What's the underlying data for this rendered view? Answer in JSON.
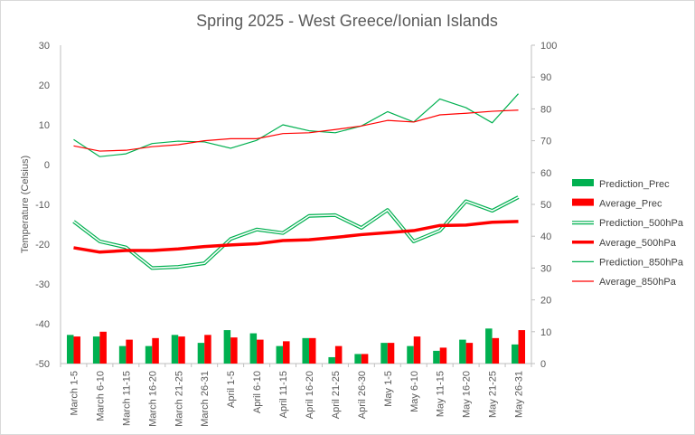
{
  "chart_data": {
    "type": "bar",
    "title": "Spring 2025 - West Greece/Ionian Islands",
    "ylabel": "Temperature  (Celsius)",
    "y2label": "",
    "ylim": [
      -50,
      30
    ],
    "y2lim": [
      0,
      100
    ],
    "yticks": [
      -50,
      -40,
      -30,
      -20,
      -10,
      0,
      10,
      20,
      30
    ],
    "y2ticks": [
      0,
      10,
      20,
      30,
      40,
      50,
      60,
      70,
      80,
      90,
      100
    ],
    "grid": false,
    "legend_position": "right",
    "categories": [
      "March 1-5",
      "March 6-10",
      "March 11-15",
      "March 16-20",
      "March 21-25",
      "March 26-31",
      "April 1-5",
      "April 6-10",
      "April 11-15",
      "April 16-20",
      "April 21-25",
      "April 26-30",
      "May 1-5",
      "May 6-10",
      "May 11-15",
      "May 16-20",
      "May 21-25",
      "May 26-31"
    ],
    "series": [
      {
        "name": "Prediction_Prec",
        "kind": "bar",
        "axis": "right",
        "color": "#00b050",
        "values": [
          9,
          8.5,
          5.5,
          5.5,
          9,
          6.5,
          10.5,
          9.5,
          5.5,
          8,
          2,
          3,
          6.5,
          5.5,
          4,
          7.5,
          11,
          6
        ]
      },
      {
        "name": "Average_Prec",
        "kind": "bar",
        "axis": "right",
        "color": "#ff0000",
        "values": [
          8.5,
          10,
          7.5,
          8,
          8.5,
          9,
          8.2,
          7.5,
          7,
          8,
          5.5,
          3,
          6.5,
          8.5,
          5,
          6.5,
          8,
          10.5
        ]
      },
      {
        "name": "Prediction_500hPa",
        "kind": "double-line",
        "axis": "left",
        "color": "#00b050",
        "values": [
          -14.3,
          -19.3,
          -20.8,
          -26,
          -25.7,
          -24.8,
          -18.7,
          -16.3,
          -17.2,
          -12.9,
          -12.7,
          -15.9,
          -11.4,
          -19.3,
          -16.6,
          -9.2,
          -11.6,
          -8.2
        ]
      },
      {
        "name": "Average_500hPa",
        "kind": "line",
        "axis": "left",
        "color": "#ff0000",
        "values": [
          -20.9,
          -22,
          -21.6,
          -21.6,
          -21.2,
          -20.6,
          -20.2,
          -19.9,
          -19.1,
          -18.9,
          -18.3,
          -17.6,
          -17.1,
          -16.6,
          -15.3,
          -15.2,
          -14.5,
          -14.3
        ]
      },
      {
        "name": "Prediction_850hPa",
        "kind": "line",
        "axis": "left",
        "color": "#00b050",
        "values": [
          6.3,
          2,
          2.7,
          5.3,
          5.9,
          5.7,
          4.1,
          6.1,
          10,
          8.5,
          8,
          9.7,
          13.3,
          10.7,
          16.5,
          14.3,
          10.5,
          17.8
        ]
      },
      {
        "name": "Average_850hPa",
        "kind": "line",
        "axis": "left",
        "color": "#ff0000",
        "values": [
          4.7,
          3.4,
          3.6,
          4.5,
          5,
          6,
          6.5,
          6.5,
          7.8,
          8,
          8.8,
          9.7,
          11.1,
          10.7,
          12.5,
          12.9,
          13.4,
          13.7
        ]
      }
    ]
  }
}
